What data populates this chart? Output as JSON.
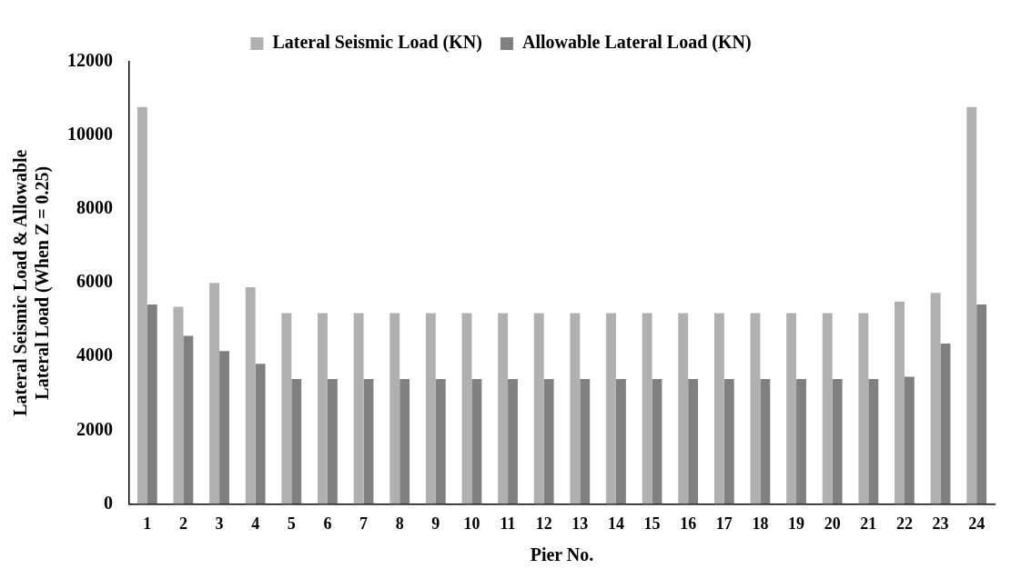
{
  "chart_data": {
    "type": "bar",
    "xlabel": "Pier No.",
    "ylabel": "Lateral Seismic Load & Allowable\nLateral Load (When Z = 0.25)",
    "categories": [
      "1",
      "2",
      "3",
      "4",
      "5",
      "6",
      "7",
      "8",
      "9",
      "10",
      "11",
      "12",
      "13",
      "14",
      "15",
      "16",
      "17",
      "18",
      "19",
      "20",
      "21",
      "22",
      "23",
      "24"
    ],
    "series": [
      {
        "name": "Lateral Seismic Load (KN)",
        "color": "#b0b0b0",
        "values": [
          10770,
          5350,
          6000,
          5880,
          5180,
          5180,
          5180,
          5180,
          5180,
          5180,
          5180,
          5180,
          5180,
          5180,
          5180,
          5180,
          5180,
          5180,
          5180,
          5180,
          5180,
          5490,
          5730,
          10770
        ]
      },
      {
        "name": "Allowable Lateral Load (KN)",
        "color": "#808080",
        "values": [
          5410,
          4560,
          4150,
          3800,
          3390,
          3390,
          3390,
          3390,
          3390,
          3390,
          3390,
          3390,
          3390,
          3390,
          3390,
          3390,
          3390,
          3390,
          3390,
          3390,
          3390,
          3450,
          4350,
          5410
        ]
      }
    ],
    "ylim": [
      0,
      12000
    ],
    "yticks": [
      0,
      2000,
      4000,
      6000,
      8000,
      10000,
      12000
    ],
    "grid": false,
    "legend": "top"
  }
}
